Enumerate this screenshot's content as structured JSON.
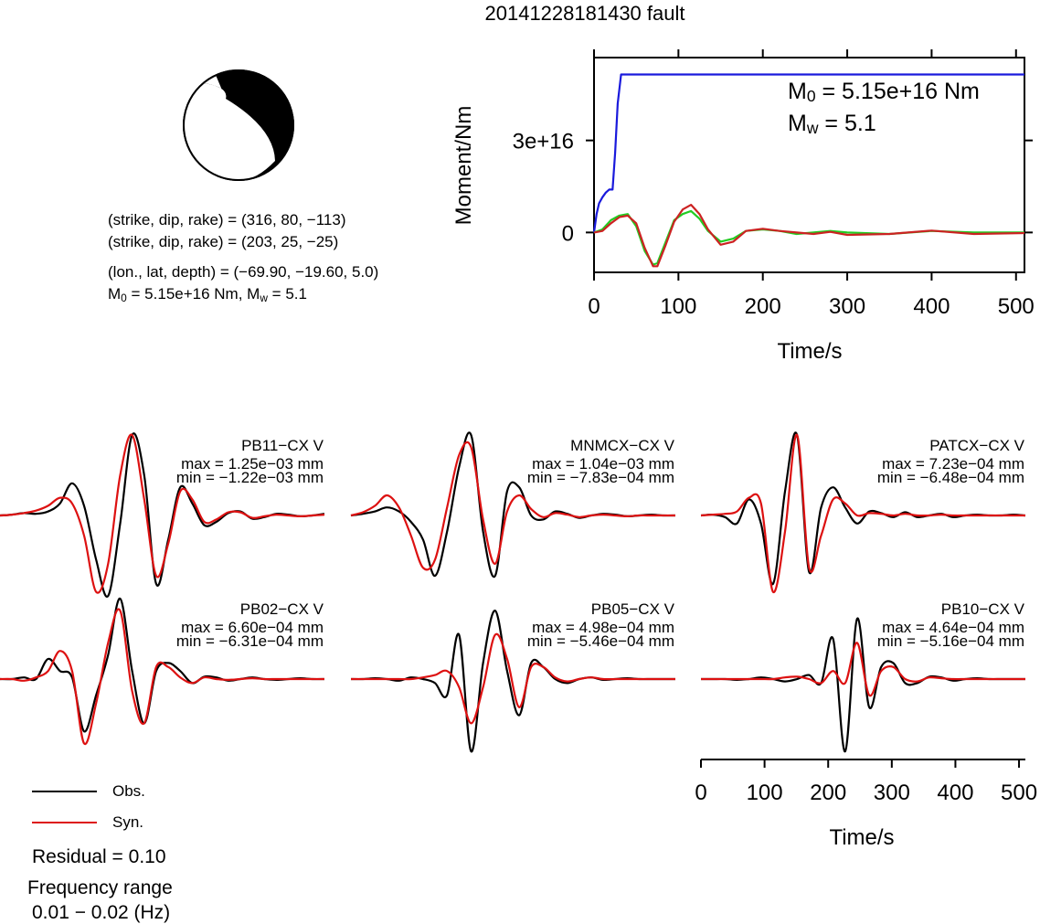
{
  "figure": {
    "title": "20141228181430 fault"
  },
  "mechanism": {
    "plane1": "(strike, dip, rake) = (316, 80, −113)",
    "plane2": "(strike, dip, rake) = (203, 25, −25)",
    "location": "(lon., lat, depth) = (−69.90, −19.60, 5.0)",
    "m0_text": "= 5.15e+16 Nm, M",
    "mw_text": "= 5.1",
    "m_letter": "M",
    "sub0": "0",
    "subw": "w"
  },
  "moment_panel": {
    "m0_label": "= 5.15e+16 Nm",
    "mw_label": "= 5.1",
    "m_letter": "M",
    "sub0": "0",
    "subw": "w"
  },
  "legend": {
    "obs": "Obs.",
    "syn": "Syn.",
    "residual": "Residual = 0.10",
    "freq_title": "Frequency range",
    "freq_value": "0.01 − 0.02 (Hz)"
  },
  "colors": {
    "obs": "#000000",
    "syn": "#dd1111",
    "moment_cumulative": "#1a1adc",
    "moment_rate_green": "#22cc22",
    "moment_rate_red": "#cc2222"
  },
  "chart_data": [
    {
      "type": "line",
      "title": "",
      "xlabel": "Time/s",
      "ylabel": "Moment/Nm",
      "xlim": [
        0,
        510
      ],
      "ylim": [
        -1.3e+16,
        5.7e+16
      ],
      "xticks": [
        0,
        100,
        200,
        300,
        400,
        500
      ],
      "yticks": [
        0,
        3e+16
      ],
      "ytick_labels": [
        "0",
        "3e+16"
      ],
      "series": [
        {
          "color": "#1a1adc",
          "x": [
            0,
            3,
            6,
            10,
            14,
            18,
            20,
            22,
            25,
            28,
            32,
            40,
            100,
            200,
            300,
            400,
            510
          ],
          "y": [
            0,
            6000000000000000.0,
            9500000000000000.0,
            1.15e+16,
            1.3e+16,
            1.4e+16,
            1.4e+16,
            1.4e+16,
            2.6e+16,
            4.2e+16,
            5.15e+16,
            5.15e+16,
            5.15e+16,
            5.15e+16,
            5.15e+16,
            5.15e+16,
            5.15e+16
          ]
        },
        {
          "color": "#22cc22",
          "x": [
            0,
            10,
            20,
            30,
            40,
            50,
            60,
            70,
            75,
            85,
            95,
            105,
            115,
            125,
            135,
            150,
            165,
            180,
            200,
            220,
            240,
            260,
            280,
            300,
            350,
            400,
            450,
            510
          ],
          "y": [
            0,
            1000000000000000.0,
            4000000000000000.0,
            5500000000000000.0,
            6000000000000000.0,
            2000000000000000.0,
            -6000000000000000.0,
            -1.05e+16,
            -1e+16,
            -3000000000000000.0,
            4000000000000000.0,
            6000000000000000.0,
            7000000000000000.0,
            4500000000000000.0,
            500000000000000.0,
            -3000000000000000.0,
            -2000000000000000.0,
            500000000000000.0,
            1000000000000000.0,
            500000000000000.0,
            -500000000000000.0,
            0.0,
            500000000000000.0,
            0.0,
            -500000000000000.0,
            500000000000000.0,
            0.0,
            0.0
          ]
        },
        {
          "color": "#cc2222",
          "x": [
            0,
            10,
            20,
            30,
            40,
            50,
            60,
            70,
            75,
            85,
            95,
            105,
            115,
            125,
            135,
            150,
            165,
            180,
            200,
            220,
            240,
            260,
            280,
            300,
            350,
            400,
            450,
            510
          ],
          "y": [
            0,
            500000000000000.0,
            3000000000000000.0,
            5000000000000000.0,
            5500000000000000.0,
            3000000000000000.0,
            -5000000000000000.0,
            -1.1e+16,
            -1.1e+16,
            -4000000000000000.0,
            3500000000000000.0,
            7500000000000000.0,
            9000000000000000.0,
            6000000000000000.0,
            1000000000000000.0,
            -4000000000000000.0,
            -3000000000000000.0,
            500000000000000.0,
            1200000000000000.0,
            500000000000000.0,
            0.0,
            -500000000000000.0,
            200000000000000.0,
            -800000000000000.0,
            -500000000000000.0,
            600000000000000.0,
            -500000000000000.0,
            -200000000000000.0
          ]
        }
      ]
    },
    {
      "type": "line",
      "xlabel": "Time/s",
      "xlim": [
        0,
        510
      ],
      "xticks": [
        0,
        100,
        200,
        300,
        400,
        500
      ],
      "traces": [
        {
          "station": "PB11−CX V",
          "max": "max = 1.25e−03 mm",
          "min": "min = −1.22e−03 mm",
          "obs": [
            0,
            0.01,
            0.03,
            0.02,
            0.05,
            0.15,
            0.4,
            0.12,
            -0.55,
            -1.0,
            -0.1,
            1.0,
            0.5,
            -0.85,
            -0.3,
            0.35,
            0.15,
            -0.12,
            -0.08,
            0.03,
            0.05,
            -0.04,
            -0.02,
            0.02,
            0.01,
            -0.01,
            0.0,
            0.02
          ],
          "syn": [
            0,
            0.01,
            0.03,
            0.06,
            0.12,
            0.22,
            0.15,
            -0.25,
            -0.95,
            -0.6,
            0.5,
            1.0,
            0.2,
            -0.75,
            -0.35,
            0.3,
            0.2,
            -0.08,
            -0.05,
            0.04,
            0.04,
            -0.03,
            -0.01,
            0.01,
            0.0,
            -0.01,
            0.0,
            0.01
          ]
        },
        {
          "station": "MNMCX−CX V",
          "max": "max = 1.04e−03 mm",
          "min": "min = −7.83e−04 mm",
          "obs": [
            0,
            0.02,
            0.05,
            0.1,
            0.05,
            -0.08,
            -0.3,
            -0.75,
            -0.2,
            0.6,
            1.0,
            -0.2,
            -0.75,
            0.3,
            0.35,
            0.0,
            -0.05,
            0.05,
            0.02,
            -0.03,
            0.0,
            0.02,
            0.01,
            -0.01,
            0.0,
            0.01,
            0.0,
            0.0
          ],
          "syn": [
            0,
            0.04,
            0.12,
            0.25,
            0.1,
            -0.25,
            -0.65,
            -0.55,
            0.1,
            0.75,
            0.85,
            -0.05,
            -0.6,
            0.05,
            0.25,
            0.08,
            -0.02,
            0.03,
            0.01,
            -0.02,
            0.0,
            0.01,
            0.0,
            -0.01,
            0.0,
            0.0,
            0.0,
            0.0
          ],
          "tail_obs": [
            0.02,
            -0.05,
            0.0
          ]
        },
        {
          "station": "PATCX−CX V",
          "max": "max = 7.23e−04 mm",
          "min": "min = −6.48e−04 mm",
          "obs": [
            0,
            0.01,
            -0.02,
            -0.1,
            0.2,
            -0.1,
            -0.85,
            0.3,
            1.0,
            -0.7,
            0.1,
            0.35,
            0.1,
            -0.1,
            0.05,
            0.03,
            -0.02,
            0.04,
            -0.02,
            0.0,
            0.02,
            -0.02,
            0.0,
            0.01,
            0.0,
            0.0,
            0.01,
            0.0
          ],
          "syn": [
            0,
            0.01,
            0.02,
            0.05,
            0.22,
            0.15,
            -0.95,
            -0.2,
            1.0,
            -0.65,
            -0.25,
            0.2,
            0.15,
            0.0,
            0.03,
            0.02,
            0.0,
            0.02,
            0.0,
            0.0,
            0.01,
            0.0,
            0.0,
            0.0,
            0.0,
            0.0,
            0.0,
            0.0
          ]
        },
        {
          "station": "PB02−CX V",
          "max": "max = 6.60e−04 mm",
          "min": "min = −6.31e−04 mm",
          "obs": [
            0,
            0.0,
            0.02,
            0.0,
            0.25,
            0.1,
            0.02,
            -0.65,
            -0.2,
            0.3,
            1.0,
            0.1,
            -0.55,
            0.1,
            0.2,
            0.1,
            -0.05,
            0.03,
            0.02,
            -0.02,
            0.0,
            0.02,
            0.0,
            -0.01,
            0.0,
            0.01,
            0.0,
            0.0
          ],
          "syn": [
            0,
            0.0,
            -0.02,
            0.02,
            0.1,
            0.35,
            0.1,
            -0.8,
            -0.3,
            0.45,
            0.85,
            -0.15,
            -0.55,
            0.15,
            0.15,
            0.02,
            -0.05,
            0.02,
            0.0,
            -0.01,
            0.0,
            0.01,
            0.0,
            0.0,
            0.0,
            0.0,
            0.0,
            0.0
          ]
        },
        {
          "station": "PB05−CX V",
          "max": "max = 4.98e−04 mm",
          "min": "min = −5.46e−04 mm",
          "obs": [
            0,
            0.0,
            0.01,
            0.0,
            -0.02,
            0.02,
            0.0,
            -0.05,
            -0.2,
            0.55,
            -0.9,
            0.2,
            0.85,
            0.1,
            -0.45,
            0.2,
            0.15,
            0.0,
            -0.05,
            0.0,
            0.02,
            -0.01,
            0.0,
            0.01,
            0.0,
            0.0,
            0.0,
            0.0
          ],
          "syn": [
            0,
            0.0,
            0.0,
            0.0,
            0.0,
            0.0,
            0.02,
            0.05,
            0.1,
            -0.1,
            -0.55,
            -0.1,
            0.55,
            0.25,
            -0.35,
            0.15,
            0.15,
            0.02,
            -0.03,
            0.0,
            0.02,
            0.0,
            0.0,
            0.0,
            0.0,
            0.0,
            0.0,
            0.0
          ]
        },
        {
          "station": "PB10−CX V",
          "max": "max = 4.64e−04 mm",
          "min": "min = −5.16e−04 mm",
          "obs": [
            0,
            0.0,
            0.0,
            -0.01,
            0.0,
            0.02,
            0.0,
            -0.03,
            0.0,
            0.05,
            -0.05,
            0.5,
            -0.9,
            0.75,
            -0.35,
            0.15,
            0.2,
            -0.05,
            -0.05,
            0.03,
            0.02,
            -0.02,
            0.0,
            0.01,
            0.0,
            0.0,
            0.0,
            0.0
          ],
          "syn": [
            0,
            0.0,
            0.0,
            0.0,
            0.0,
            0.0,
            0.0,
            0.02,
            0.03,
            0.0,
            -0.05,
            0.1,
            -0.05,
            0.45,
            -0.2,
            0.1,
            0.15,
            0.0,
            -0.03,
            0.02,
            0.01,
            0.0,
            0.0,
            0.0,
            0.0,
            0.0,
            0.0,
            0.0
          ]
        }
      ]
    }
  ]
}
